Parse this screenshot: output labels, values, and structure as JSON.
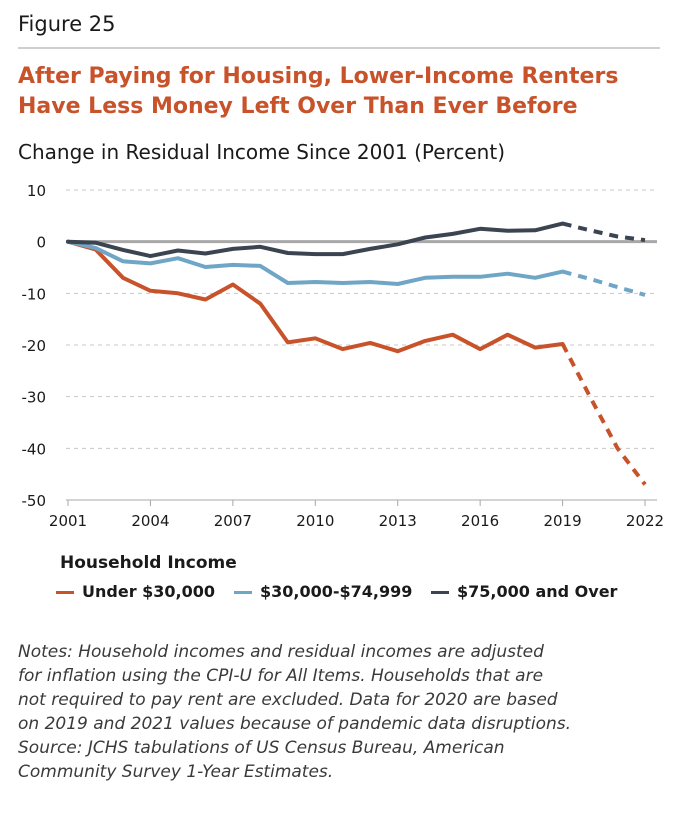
{
  "figure_label": "Figure 25",
  "title_lines": [
    "After Paying for Housing, Lower-Income Renters",
    "Have Less Money Left Over Than Ever Before"
  ],
  "chart_data": {
    "type": "line",
    "title": "Change in Residual Income Since 2001 (Percent)",
    "xlabel": "",
    "ylabel": "",
    "x": [
      2001,
      2002,
      2003,
      2004,
      2005,
      2006,
      2007,
      2008,
      2009,
      2010,
      2011,
      2012,
      2013,
      2014,
      2015,
      2016,
      2017,
      2018,
      2019,
      2020,
      2021,
      2022
    ],
    "xticks": [
      2001,
      2004,
      2007,
      2010,
      2013,
      2016,
      2019,
      2022
    ],
    "yticks": [
      10,
      0,
      -10,
      -20,
      -30,
      -40,
      -50
    ],
    "xlim": [
      2001,
      2022
    ],
    "ylim": [
      -50,
      10
    ],
    "grid": true,
    "estimated_from_year": 2019,
    "series": [
      {
        "name": "Under $30,000",
        "color": "#c8522a",
        "values": [
          0,
          -1.5,
          -7,
          -9.5,
          -10,
          -11.2,
          -8.3,
          -12,
          -19.5,
          -18.7,
          -20.8,
          -19.6,
          -21.2,
          -19.2,
          -18,
          -20.8,
          -18,
          -20.5,
          -19.8,
          -30,
          -40,
          -47
        ]
      },
      {
        "name": "$30,000-$74,999",
        "color": "#6fa6c6",
        "values": [
          0,
          -1.2,
          -3.8,
          -4.2,
          -3.2,
          -4.9,
          -4.5,
          -4.7,
          -8,
          -7.8,
          -8,
          -7.8,
          -8.2,
          -7,
          -6.8,
          -6.8,
          -6.2,
          -7,
          -5.8,
          -7.2,
          -8.8,
          -10.3
        ]
      },
      {
        "name": "$75,000 and Over",
        "color": "#3b4551",
        "values": [
          0,
          -0.2,
          -1.6,
          -2.8,
          -1.7,
          -2.3,
          -1.4,
          -1,
          -2.2,
          -2.4,
          -2.4,
          -1.4,
          -0.5,
          0.8,
          1.5,
          2.5,
          2.1,
          2.2,
          3.5,
          2.2,
          1,
          0.3
        ]
      }
    ]
  },
  "legend_title": "Household Income",
  "notes": [
    "Notes: Household incomes and residual incomes are adjusted",
    "for inflation using the CPI-U for All Items. Households that are",
    "not required to pay rent are excluded. Data for 2020 are based",
    "on 2019 and 2021 values because of pandemic data disruptions.",
    "Source: JCHS tabulations of US Census Bureau, American",
    "Community Survey 1-Year Estimates."
  ]
}
